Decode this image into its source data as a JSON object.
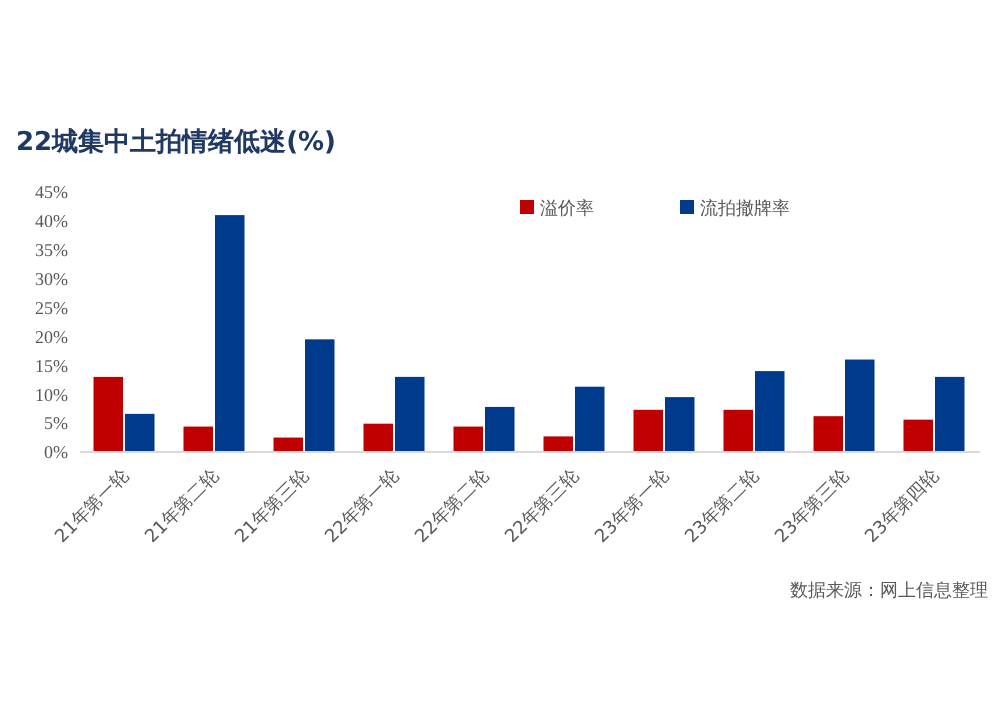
{
  "chart_data": {
    "type": "bar",
    "title": "22城集中土拍情绪低迷(%)",
    "categories": [
      "21年第一轮",
      "21年第二轮",
      "21年第三轮",
      "22年第一轮",
      "22年第二轮",
      "22年第三轮",
      "23年第一轮",
      "23年第二轮",
      "23年第三轮",
      "23年第四轮"
    ],
    "series": [
      {
        "name": "溢价率",
        "color": "#c00000",
        "values": [
          13,
          4.4,
          2.5,
          4.9,
          4.4,
          2.7,
          7.3,
          7.3,
          6.2,
          5.6
        ]
      },
      {
        "name": "流拍撤牌率",
        "color": "#003a8c",
        "values": [
          6.6,
          41,
          19.5,
          13,
          7.8,
          11.3,
          9.5,
          14,
          16,
          13
        ]
      }
    ],
    "ylim": [
      0,
      45
    ],
    "yticks": [
      {
        "value": 0,
        "label": "0%"
      },
      {
        "value": 5,
        "label": "5%"
      },
      {
        "value": 10,
        "label": "10%"
      },
      {
        "value": 15,
        "label": "15%"
      },
      {
        "value": 20,
        "label": "20%"
      },
      {
        "value": 25,
        "label": "25%"
      },
      {
        "value": 30,
        "label": "30%"
      },
      {
        "value": 35,
        "label": "35%"
      },
      {
        "value": 40,
        "label": "40%"
      },
      {
        "value": 45,
        "label": "45%"
      }
    ],
    "grid": false,
    "legend": "top right",
    "annotations": [
      "数据来源：网上信息整理"
    ]
  }
}
